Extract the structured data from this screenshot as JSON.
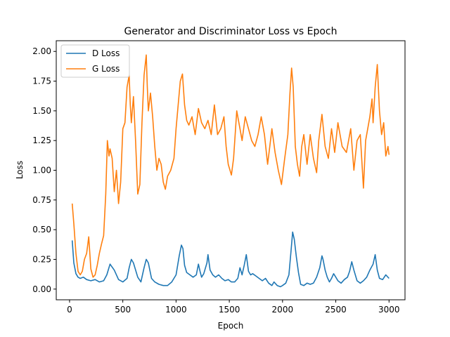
{
  "chart_data": {
    "type": "line",
    "title": "Generator and Discriminator Loss vs Epoch",
    "xlabel": "Epoch",
    "ylabel": "Loss",
    "xlim": [
      -125,
      3150
    ],
    "ylim": [
      -0.09,
      2.09
    ],
    "xticks": [
      0,
      500,
      1000,
      1500,
      2000,
      2500,
      3000
    ],
    "yticks": [
      0.0,
      0.25,
      0.5,
      0.75,
      1.0,
      1.25,
      1.5,
      1.75,
      2.0
    ],
    "ytick_labels": [
      "0.00",
      "0.25",
      "0.50",
      "0.75",
      "1.00",
      "1.25",
      "1.50",
      "1.75",
      "2.00"
    ],
    "grid": false,
    "legend_position": "top-left",
    "series": [
      {
        "name": "D Loss",
        "color": "#1f77b4",
        "x": [
          25,
          40,
          60,
          80,
          100,
          130,
          160,
          200,
          240,
          280,
          320,
          350,
          380,
          420,
          460,
          500,
          540,
          560,
          580,
          600,
          640,
          670,
          700,
          720,
          740,
          770,
          800,
          840,
          880,
          920,
          960,
          1000,
          1030,
          1050,
          1065,
          1080,
          1100,
          1130,
          1160,
          1190,
          1210,
          1225,
          1240,
          1260,
          1290,
          1300,
          1320,
          1345,
          1370,
          1400,
          1430,
          1460,
          1490,
          1520,
          1550,
          1580,
          1600,
          1620,
          1640,
          1660,
          1680,
          1700,
          1720,
          1750,
          1780,
          1810,
          1840,
          1870,
          1900,
          1920,
          1950,
          1980,
          2000,
          2030,
          2060,
          2080,
          2095,
          2110,
          2130,
          2150,
          2170,
          2200,
          2230,
          2260,
          2290,
          2320,
          2350,
          2370,
          2380,
          2400,
          2420,
          2440,
          2460,
          2480,
          2500,
          2520,
          2550,
          2580,
          2610,
          2630,
          2650,
          2670,
          2700,
          2730,
          2760,
          2790,
          2820,
          2850,
          2870,
          2890,
          2910,
          2940,
          2970,
          3000
        ],
        "y": [
          0.41,
          0.22,
          0.13,
          0.1,
          0.09,
          0.1,
          0.08,
          0.07,
          0.08,
          0.06,
          0.07,
          0.12,
          0.21,
          0.16,
          0.08,
          0.06,
          0.09,
          0.18,
          0.25,
          0.22,
          0.1,
          0.06,
          0.18,
          0.25,
          0.22,
          0.09,
          0.06,
          0.04,
          0.03,
          0.03,
          0.06,
          0.12,
          0.28,
          0.37,
          0.34,
          0.2,
          0.14,
          0.12,
          0.1,
          0.12,
          0.21,
          0.15,
          0.1,
          0.13,
          0.22,
          0.29,
          0.16,
          0.12,
          0.1,
          0.12,
          0.09,
          0.07,
          0.08,
          0.06,
          0.06,
          0.09,
          0.18,
          0.12,
          0.2,
          0.29,
          0.15,
          0.12,
          0.13,
          0.11,
          0.09,
          0.07,
          0.09,
          0.05,
          0.03,
          0.06,
          0.03,
          0.02,
          0.03,
          0.05,
          0.12,
          0.32,
          0.48,
          0.42,
          0.27,
          0.14,
          0.04,
          0.03,
          0.05,
          0.04,
          0.05,
          0.1,
          0.18,
          0.28,
          0.25,
          0.16,
          0.1,
          0.06,
          0.09,
          0.13,
          0.1,
          0.07,
          0.05,
          0.08,
          0.1,
          0.15,
          0.23,
          0.16,
          0.07,
          0.05,
          0.07,
          0.1,
          0.16,
          0.21,
          0.29,
          0.16,
          0.09,
          0.08,
          0.12,
          0.09
        ]
      },
      {
        "name": "G Loss",
        "color": "#ff7f0e",
        "x": [
          25,
          40,
          60,
          80,
          100,
          120,
          140,
          160,
          180,
          200,
          220,
          240,
          260,
          280,
          300,
          320,
          340,
          355,
          370,
          380,
          400,
          420,
          440,
          460,
          480,
          500,
          520,
          540,
          560,
          570,
          580,
          600,
          620,
          640,
          660,
          680,
          700,
          720,
          730,
          740,
          760,
          780,
          800,
          820,
          840,
          860,
          880,
          900,
          920,
          950,
          980,
          1000,
          1020,
          1040,
          1060,
          1080,
          1100,
          1120,
          1150,
          1180,
          1210,
          1240,
          1270,
          1300,
          1330,
          1360,
          1390,
          1420,
          1450,
          1470,
          1490,
          1520,
          1540,
          1570,
          1600,
          1620,
          1650,
          1680,
          1710,
          1740,
          1770,
          1800,
          1830,
          1860,
          1880,
          1900,
          1930,
          1960,
          1990,
          2020,
          2050,
          2070,
          2085,
          2100,
          2120,
          2140,
          2160,
          2180,
          2200,
          2230,
          2260,
          2290,
          2320,
          2340,
          2370,
          2400,
          2430,
          2460,
          2490,
          2520,
          2560,
          2600,
          2640,
          2670,
          2700,
          2730,
          2760,
          2780,
          2800,
          2820,
          2840,
          2850,
          2870,
          2890,
          2910,
          2930,
          2950,
          2970,
          2990,
          3000
        ],
        "y": [
          0.72,
          0.55,
          0.3,
          0.15,
          0.12,
          0.15,
          0.25,
          0.3,
          0.44,
          0.17,
          0.1,
          0.12,
          0.2,
          0.3,
          0.38,
          0.45,
          0.8,
          1.25,
          1.12,
          1.18,
          1.1,
          0.82,
          1.0,
          0.72,
          0.9,
          1.35,
          1.4,
          1.7,
          1.8,
          1.55,
          1.4,
          1.62,
          1.25,
          0.8,
          0.88,
          1.4,
          1.8,
          1.97,
          1.7,
          1.5,
          1.65,
          1.45,
          1.2,
          1.0,
          1.1,
          1.05,
          0.9,
          0.84,
          0.95,
          1.0,
          1.1,
          1.35,
          1.55,
          1.75,
          1.81,
          1.55,
          1.42,
          1.38,
          1.45,
          1.3,
          1.52,
          1.4,
          1.35,
          1.42,
          1.3,
          1.55,
          1.3,
          1.35,
          1.45,
          1.2,
          1.05,
          0.96,
          1.1,
          1.5,
          1.35,
          1.25,
          1.45,
          1.35,
          1.25,
          1.2,
          1.3,
          1.45,
          1.3,
          1.05,
          1.2,
          1.35,
          1.15,
          1.0,
          0.88,
          1.1,
          1.3,
          1.65,
          1.86,
          1.7,
          1.2,
          1.05,
          0.95,
          1.2,
          1.3,
          1.05,
          1.3,
          1.1,
          0.98,
          1.25,
          1.47,
          1.2,
          1.1,
          1.35,
          1.15,
          1.4,
          1.2,
          1.15,
          1.35,
          1.0,
          1.25,
          1.3,
          0.85,
          1.25,
          1.35,
          1.45,
          1.6,
          1.4,
          1.7,
          1.89,
          1.5,
          1.3,
          1.4,
          1.12,
          1.2,
          1.13
        ]
      }
    ]
  }
}
